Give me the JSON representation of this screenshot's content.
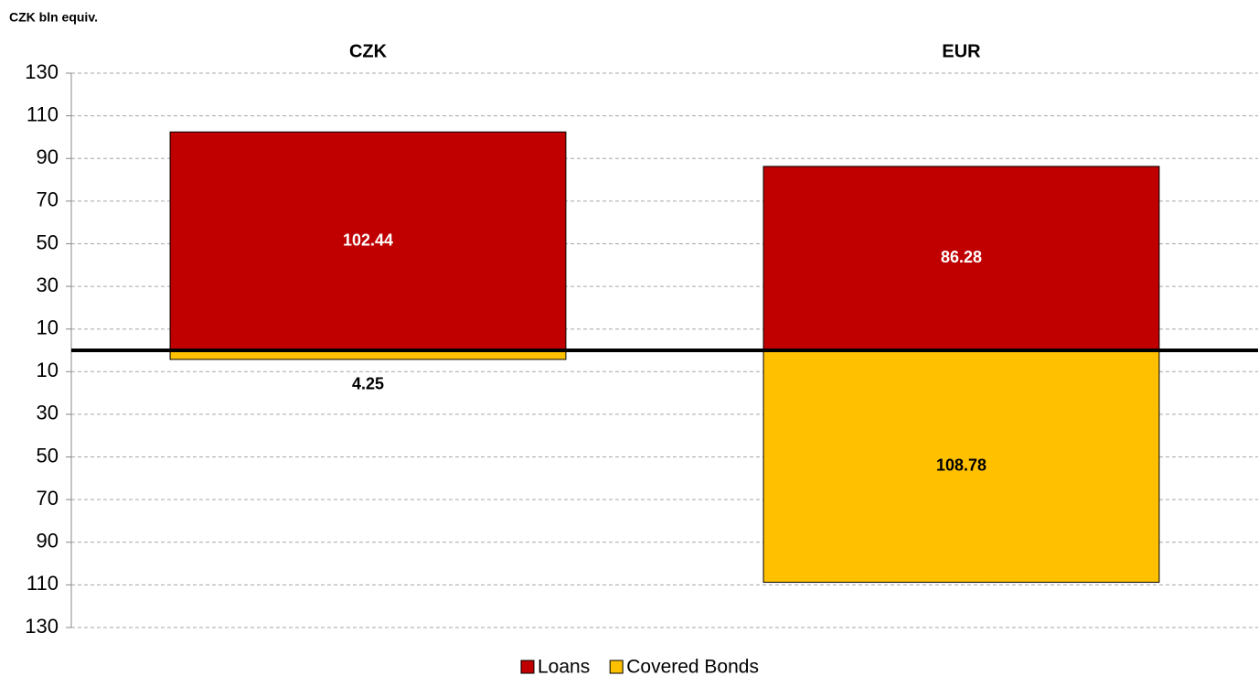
{
  "chart_data": {
    "type": "bar",
    "y_axis_label": "CZK bln equiv.",
    "categories": [
      "CZK",
      "EUR"
    ],
    "series": [
      {
        "name": "Loans",
        "color": "#c00000",
        "values": [
          102.44,
          86.28
        ],
        "value_labels": [
          "102.44",
          "86.28"
        ]
      },
      {
        "name": "Covered Bonds",
        "color": "#ffc000",
        "values": [
          -4.25,
          -108.78
        ],
        "value_labels": [
          "4.25",
          "108.78"
        ]
      }
    ],
    "ylim": [
      -130,
      130
    ],
    "yticks": [
      130,
      110,
      90,
      70,
      50,
      30,
      10,
      {
        "value": -10,
        "label": "10"
      },
      {
        "value": -30,
        "label": "30"
      },
      {
        "value": -50,
        "label": "50"
      },
      {
        "value": -70,
        "label": "70"
      },
      {
        "value": -90,
        "label": "90"
      },
      {
        "value": -110,
        "label": "110"
      },
      {
        "value": -130,
        "label": "130"
      }
    ],
    "grid": true,
    "legend": "bottom"
  }
}
